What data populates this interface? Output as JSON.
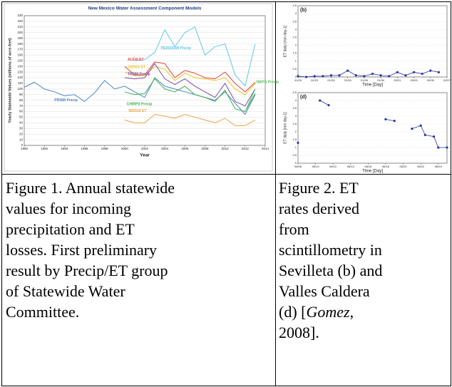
{
  "figure1": {
    "chart_data": {
      "type": "line",
      "title": "New Mexico Water Assessment Component Models",
      "xlabel": "Year",
      "ylabel": "Yearly Statewide Values (millions of acre-feet)",
      "xlim": [
        1990,
        2014
      ],
      "xticks": [
        1990,
        1992,
        1994,
        1996,
        1998,
        2000,
        2002,
        2004,
        2006,
        2008,
        2010,
        2012,
        2014
      ],
      "ylim": [
        0,
        230
      ],
      "yticks": [
        0,
        10,
        20,
        30,
        40,
        50,
        60,
        70,
        80,
        90,
        100,
        110,
        120,
        130,
        140,
        150,
        160,
        170,
        180,
        190,
        200,
        210,
        220,
        230
      ],
      "grid": true,
      "markers": false,
      "series": [
        {
          "name": "PERSIANN Precip",
          "color": "#5ec6e6",
          "x": [
            2001,
            2002,
            2003,
            2004,
            2005,
            2006,
            2007,
            2008,
            2009,
            2010,
            2011,
            2012,
            2013
          ],
          "values": [
            150,
            152,
            165,
            205,
            175,
            200,
            210,
            160,
            175,
            180,
            125,
            105,
            180
          ]
        },
        {
          "name": "PRISM Precip",
          "color": "#4a86c8",
          "x": [
            1990,
            1991,
            1992,
            1993,
            1994,
            1995,
            1996,
            1997,
            1998,
            1999,
            2000,
            2001,
            2002,
            2003,
            2004,
            2005,
            2006,
            2007,
            2008,
            2009,
            2010,
            2011,
            2012,
            2013
          ],
          "values": [
            103,
            112,
            100,
            95,
            88,
            90,
            78,
            93,
            115,
            100,
            105,
            95,
            85,
            120,
            105,
            100,
            95,
            90,
            85,
            80,
            95,
            75,
            55,
            90
          ]
        },
        {
          "name": "ALEXI ET",
          "color": "#e0403c",
          "x": [
            2000,
            2001,
            2002,
            2003,
            2004,
            2005,
            2006,
            2007,
            2008,
            2009,
            2010,
            2011,
            2012,
            2013
          ],
          "values": [
            140,
            125,
            125,
            148,
            145,
            120,
            133,
            128,
            120,
            118,
            130,
            110,
            95,
            112
          ]
        },
        {
          "name": "CERES ET",
          "color": "#f0c020",
          "x": [
            2000,
            2001,
            2002,
            2003,
            2004,
            2005,
            2006,
            2007,
            2008,
            2009,
            2010,
            2011,
            2012,
            2013
          ],
          "values": [
            130,
            123,
            124,
            140,
            135,
            115,
            128,
            120,
            118,
            115,
            120,
            100,
            90,
            110
          ]
        },
        {
          "name": "TRMM Precip",
          "color": "#7a4aa8",
          "x": [
            2000,
            2001,
            2002,
            2003,
            2004,
            2005,
            2006,
            2007,
            2008,
            2009,
            2010,
            2011,
            2012,
            2013
          ],
          "values": [
            120,
            118,
            120,
            145,
            118,
            108,
            118,
            105,
            95,
            85,
            110,
            78,
            70,
            100
          ]
        },
        {
          "name": "CHIRPS Precip",
          "color": "#3cb04a",
          "x": [
            2000,
            2001,
            2002,
            2003,
            2004,
            2005,
            2006,
            2007,
            2008,
            2009,
            2010,
            2011,
            2012,
            2013
          ],
          "values": [
            95,
            90,
            92,
            118,
            100,
            95,
            105,
            90,
            85,
            78,
            98,
            65,
            60,
            92
          ]
        },
        {
          "name": "MOD16 ET",
          "color": "#f0a040",
          "x": [
            2000,
            2001,
            2002,
            2003,
            2004,
            2005,
            2006,
            2007,
            2008,
            2009,
            2010,
            2011,
            2012,
            2013
          ],
          "values": [
            45,
            40,
            40,
            55,
            52,
            48,
            55,
            50,
            45,
            40,
            48,
            35,
            35,
            45
          ]
        },
        {
          "name": "NWPS Precip",
          "color": "#5cc060",
          "x": [
            2012,
            2013
          ],
          "values": [
            60,
            100
          ]
        }
      ]
    },
    "caption": [
      "Figure 1. Annual statewide",
      "values for incoming",
      "precipitation and ET",
      "losses. First preliminary",
      "result by Precip/ET group",
      "of Statewide Water",
      "Committee."
    ]
  },
  "figure2": {
    "panels": [
      {
        "chart_data": {
          "type": "line",
          "panel_label": "(b)",
          "xlabel": "Time [Day]",
          "ylabel": "ET daily [mm day-1]",
          "markers": true,
          "grid": true,
          "xlim": [
            0,
            18
          ],
          "xticks": [
            {
              "value": 0,
              "label": "01/20"
            },
            {
              "value": 2,
              "label": "01/22"
            },
            {
              "value": 4,
              "label": "01/24"
            },
            {
              "value": 6,
              "label": "01/26"
            },
            {
              "value": 8,
              "label": "01/28"
            },
            {
              "value": 10,
              "label": "01/30"
            },
            {
              "value": 12,
              "label": "02/01"
            },
            {
              "value": 14,
              "label": "02/03"
            },
            {
              "value": 16,
              "label": "02/05"
            },
            {
              "value": 18,
              "label": "02/07"
            }
          ],
          "ylim": [
            0,
            4.5
          ],
          "yticks": [
            0,
            0.5,
            1,
            1.5,
            2,
            2.5,
            3,
            3.5,
            4,
            4.5
          ],
          "series": [
            {
              "color": "#2a34a0",
              "x": [
                0,
                1,
                2,
                3,
                4,
                5,
                6,
                7,
                8,
                9,
                10,
                11,
                12,
                13,
                14,
                15,
                16,
                17
              ],
              "values": [
                0.05,
                0,
                0.05,
                0.05,
                0.1,
                0.1,
                0.4,
                0.1,
                0.05,
                0.2,
                0.1,
                0.05,
                0.3,
                0.1,
                0.3,
                0.2,
                0.4,
                0.3
              ]
            }
          ]
        }
      },
      {
        "chart_data": {
          "type": "line",
          "panel_label": "(d)",
          "xlabel": "Time [Day]",
          "ylabel": "ET daily [mm day-1]",
          "markers": true,
          "grid": true,
          "xlim": [
            0,
            17
          ],
          "xticks": [
            {
              "value": 0,
              "label": "06/08"
            },
            {
              "value": 2,
              "label": "06/10"
            },
            {
              "value": 4,
              "label": "06/12"
            },
            {
              "value": 6,
              "label": "06/14"
            },
            {
              "value": 8,
              "label": "06/16"
            },
            {
              "value": 10,
              "label": "06/18"
            },
            {
              "value": 12,
              "label": "06/20"
            },
            {
              "value": 14,
              "label": "06/22"
            },
            {
              "value": 16,
              "label": "06/24"
            }
          ],
          "ylim": [
            0,
            4.5
          ],
          "yticks": [
            0,
            0.5,
            1,
            1.5,
            2,
            2.5,
            3,
            3.5,
            4,
            4.5
          ],
          "series": [
            {
              "color": "#2a34a0",
              "x": [
                0,
                1,
                2.5,
                3.5,
                7,
                10,
                11,
                12,
                13,
                14,
                14.5,
                15.5,
                16,
                17
              ],
              "values": [
                1.3,
                null,
                4.0,
                3.7,
                null,
                2.8,
                2.7,
                null,
                2.2,
                2.4,
                1.8,
                1.7,
                1.0,
                1.0
              ]
            }
          ]
        }
      }
    ],
    "caption": [
      "Figure 2. ET",
      "rates derived",
      "from",
      "scintillometry in",
      "Sevilleta (b) and",
      "Valles Caldera"
    ],
    "caption_citation": {
      "before": "(d) [",
      "author": "Gomez",
      "after": ","
    },
    "caption_end": "2008]."
  }
}
